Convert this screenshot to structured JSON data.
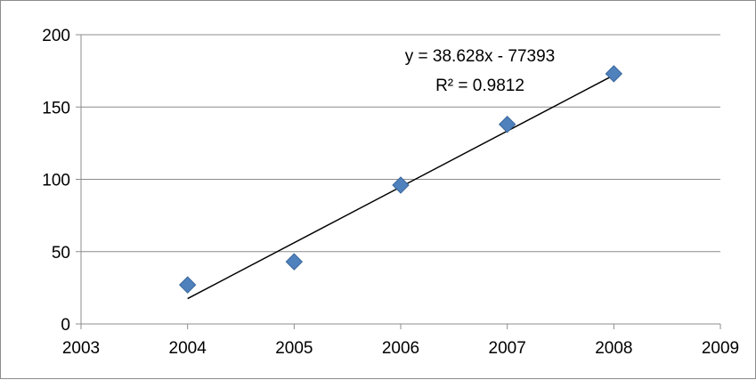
{
  "chart_data": {
    "type": "scatter",
    "title": "",
    "xlabel": "",
    "ylabel": "",
    "xlim": [
      2003,
      2009
    ],
    "ylim": [
      0,
      200
    ],
    "x_ticks": [
      2003,
      2004,
      2005,
      2006,
      2007,
      2008,
      2009
    ],
    "y_ticks": [
      0,
      50,
      100,
      150,
      200
    ],
    "grid": "horizontal",
    "legend": "none",
    "series": [
      {
        "marker": "diamond",
        "color": "#4f81bd",
        "x": [
          2004,
          2005,
          2006,
          2007,
          2008
        ],
        "y": [
          27,
          43,
          96,
          138,
          173
        ]
      }
    ],
    "trendline": {
      "type": "linear",
      "color": "#000000",
      "x_range": [
        2004,
        2008
      ],
      "slope": 38.628,
      "intercept": -77393,
      "equation": "y = 38.628x - 77393",
      "r_squared": "R² = 0.9812"
    }
  }
}
